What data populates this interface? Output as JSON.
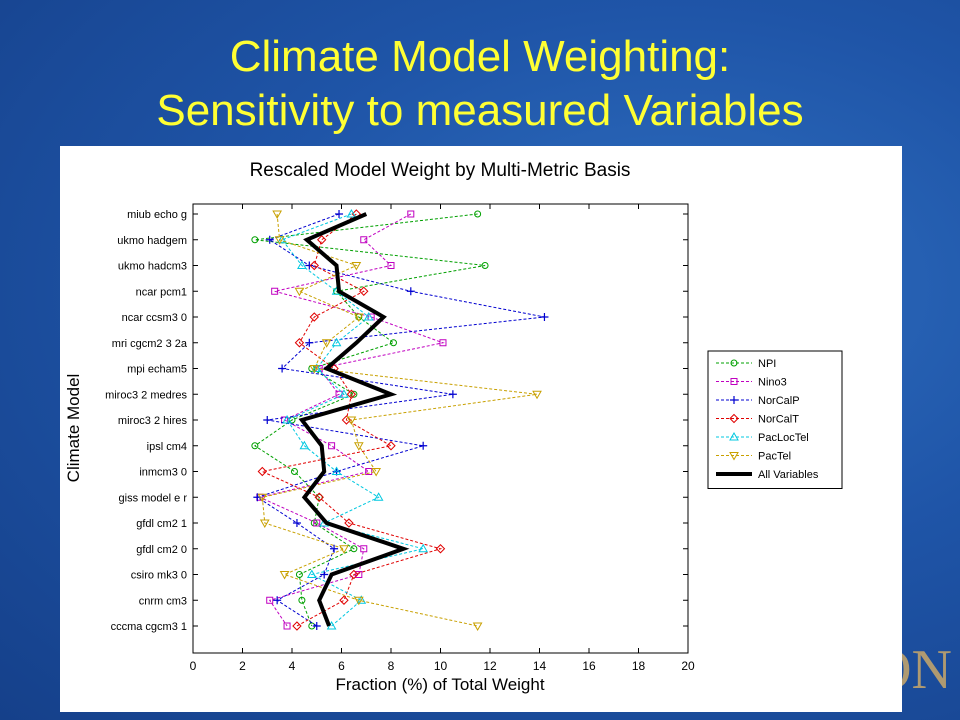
{
  "slide": {
    "title_line1": "Climate Model Weighting:",
    "title_line2": "Sensitivity to measured Variables",
    "corner_logo": "ON"
  },
  "chart_data": {
    "type": "line",
    "title": "Rescaled Model Weight by Multi-Metric Basis",
    "xlabel": "Fraction (%) of Total Weight",
    "ylabel": "Climate Model",
    "xlim": [
      0,
      20
    ],
    "xticks": [
      0,
      2,
      4,
      6,
      8,
      10,
      12,
      14,
      16,
      18,
      20
    ],
    "categories": [
      "miub echo g",
      "ukmo hadgem",
      "ukmo hadcm3",
      "ncar pcm1",
      "ncar ccsm3 0",
      "mri cgcm2 3 2a",
      "mpi echam5",
      "miroc3 2 medres",
      "miroc3 2 hires",
      "ipsl cm4",
      "inmcm3 0",
      "giss model e r",
      "gfdl cm2 1",
      "gfdl cm2 0",
      "csiro mk3 0",
      "cnrm cm3",
      "cccma cgcm3 1"
    ],
    "legend_position": "right",
    "series": [
      {
        "name": "NPI",
        "color": "#00a000",
        "marker": "circle",
        "values": [
          11.5,
          2.5,
          11.8,
          5.8,
          6.7,
          8.1,
          4.8,
          6.5,
          4.0,
          2.5,
          4.1,
          5.1,
          4.9,
          6.5,
          4.3,
          4.4,
          4.8
        ]
      },
      {
        "name": "Nino3",
        "color": "#c000c0",
        "marker": "square",
        "values": [
          8.8,
          6.9,
          8.0,
          3.3,
          7.2,
          10.1,
          5.1,
          5.9,
          3.7,
          5.6,
          7.1,
          2.7,
          5.0,
          6.9,
          6.7,
          3.1,
          3.8
        ]
      },
      {
        "name": "NorCalP",
        "color": "#0000d0",
        "marker": "plus",
        "values": [
          5.9,
          3.1,
          4.7,
          8.8,
          14.2,
          4.7,
          3.6,
          10.5,
          3.0,
          9.3,
          5.8,
          2.6,
          4.2,
          5.7,
          5.3,
          3.4,
          5.0
        ]
      },
      {
        "name": "NorCalT",
        "color": "#e00000",
        "marker": "diamond",
        "values": [
          6.6,
          5.2,
          4.9,
          6.9,
          4.9,
          4.3,
          5.7,
          6.4,
          6.2,
          8.0,
          2.8,
          5.1,
          6.3,
          10.0,
          6.5,
          6.1,
          4.2
        ]
      },
      {
        "name": "PacLocTel",
        "color": "#00c8e0",
        "marker": "triangle-up",
        "values": [
          6.4,
          3.6,
          4.4,
          5.8,
          7.1,
          5.8,
          5.0,
          6.1,
          3.8,
          4.5,
          5.8,
          7.5,
          5.3,
          9.3,
          4.8,
          6.8,
          5.6
        ]
      },
      {
        "name": "PacTel",
        "color": "#c8a000",
        "marker": "triangle-down",
        "values": [
          3.4,
          3.5,
          6.6,
          4.3,
          6.7,
          5.4,
          4.9,
          13.9,
          6.4,
          6.7,
          7.4,
          2.8,
          2.9,
          6.1,
          3.7,
          6.7,
          11.5
        ]
      },
      {
        "name": "All Variables",
        "color": "#000000",
        "marker": "none",
        "thick": true,
        "values": [
          7.0,
          4.6,
          5.8,
          5.9,
          7.7,
          6.6,
          5.4,
          8.0,
          4.4,
          5.2,
          5.3,
          4.5,
          5.4,
          8.5,
          5.6,
          5.1,
          5.5
        ]
      }
    ]
  }
}
